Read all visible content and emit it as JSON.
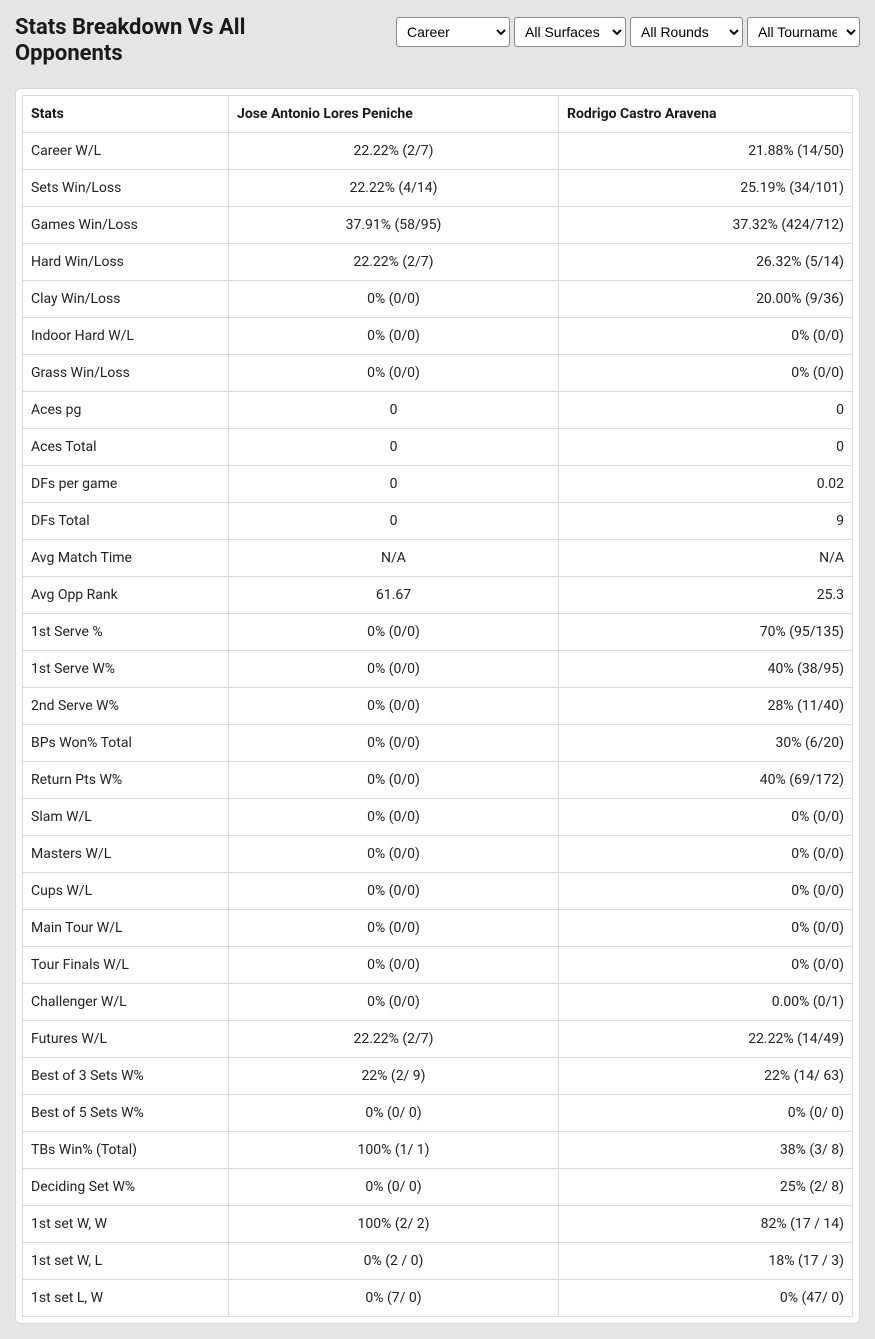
{
  "colors": {
    "page_bg": "#e5e5e5",
    "card_bg": "#ffffff",
    "border": "#d9d9d9",
    "text": "#1a1a1a"
  },
  "header": {
    "title": "Stats Breakdown Vs All Opponents",
    "filters": {
      "timeframe": {
        "selected": "Career",
        "options": [
          "Career"
        ]
      },
      "surface": {
        "selected": "All Surfaces",
        "options": [
          "All Surfaces"
        ]
      },
      "round": {
        "selected": "All Rounds",
        "options": [
          "All Rounds"
        ]
      },
      "tournament": {
        "selected": "All Tournaments",
        "options": [
          "All Tournaments"
        ]
      }
    }
  },
  "table": {
    "columns": [
      "Stats",
      "Jose Antonio Lores Peniche",
      "Rodrigo Castro Aravena"
    ],
    "rows": [
      [
        "Career W/L",
        "22.22% (2/7)",
        "21.88% (14/50)"
      ],
      [
        "Sets Win/Loss",
        "22.22% (4/14)",
        "25.19% (34/101)"
      ],
      [
        "Games Win/Loss",
        "37.91% (58/95)",
        "37.32% (424/712)"
      ],
      [
        "Hard Win/Loss",
        "22.22% (2/7)",
        "26.32% (5/14)"
      ],
      [
        "Clay Win/Loss",
        "0% (0/0)",
        "20.00% (9/36)"
      ],
      [
        "Indoor Hard W/L",
        "0% (0/0)",
        "0% (0/0)"
      ],
      [
        "Grass Win/Loss",
        "0% (0/0)",
        "0% (0/0)"
      ],
      [
        "Aces pg",
        "0",
        "0"
      ],
      [
        "Aces Total",
        "0",
        "0"
      ],
      [
        "DFs per game",
        "0",
        "0.02"
      ],
      [
        "DFs Total",
        "0",
        "9"
      ],
      [
        "Avg Match Time",
        "N/A",
        "N/A"
      ],
      [
        "Avg Opp Rank",
        "61.67",
        "25.3"
      ],
      [
        "1st Serve %",
        "0% (0/0)",
        "70% (95/135)"
      ],
      [
        "1st Serve W%",
        "0% (0/0)",
        "40% (38/95)"
      ],
      [
        "2nd Serve W%",
        "0% (0/0)",
        "28% (11/40)"
      ],
      [
        "BPs Won% Total",
        "0% (0/0)",
        "30% (6/20)"
      ],
      [
        "Return Pts W%",
        "0% (0/0)",
        "40% (69/172)"
      ],
      [
        "Slam W/L",
        "0% (0/0)",
        "0% (0/0)"
      ],
      [
        "Masters W/L",
        "0% (0/0)",
        "0% (0/0)"
      ],
      [
        "Cups W/L",
        "0% (0/0)",
        "0% (0/0)"
      ],
      [
        "Main Tour W/L",
        "0% (0/0)",
        "0% (0/0)"
      ],
      [
        "Tour Finals W/L",
        "0% (0/0)",
        "0% (0/0)"
      ],
      [
        "Challenger W/L",
        "0% (0/0)",
        "0.00% (0/1)"
      ],
      [
        "Futures W/L",
        "22.22% (2/7)",
        "22.22% (14/49)"
      ],
      [
        "Best of 3 Sets W%",
        "22% (2/ 9)",
        "22% (14/ 63)"
      ],
      [
        "Best of 5 Sets W%",
        "0% (0/ 0)",
        "0% (0/ 0)"
      ],
      [
        "TBs Win% (Total)",
        "100% (1/ 1)",
        "38% (3/ 8)"
      ],
      [
        "Deciding Set W%",
        "0% (0/ 0)",
        "25% (2/ 8)"
      ],
      [
        "1st set W, W",
        "100% (2/ 2)",
        "82% (17 / 14)"
      ],
      [
        "1st set W, L",
        "0% (2 / 0)",
        "18% (17 / 3)"
      ],
      [
        "1st set L, W",
        "0% (7/ 0)",
        "0% (47/ 0)"
      ]
    ]
  }
}
